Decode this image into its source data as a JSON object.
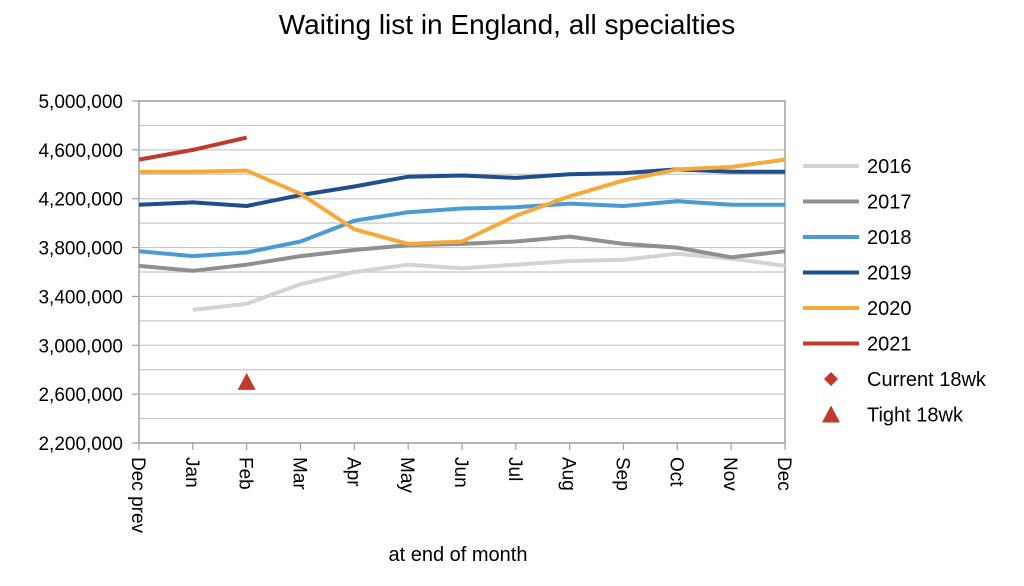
{
  "chart_data": {
    "type": "line",
    "title": "Waiting list in England, all specialties",
    "xlabel": "at end of month",
    "ylabel": "",
    "categories": [
      "Dec prev",
      "Jan",
      "Feb",
      "Mar",
      "Apr",
      "May",
      "Jun",
      "Jul",
      "Aug",
      "Sep",
      "Oct",
      "Nov",
      "Dec"
    ],
    "ylim": [
      2200000,
      5000000
    ],
    "yticks": [
      2200000,
      2600000,
      3000000,
      3400000,
      3800000,
      4200000,
      4600000,
      5000000
    ],
    "ytick_labels": [
      "2,200,000",
      "2,600,000",
      "3,000,000",
      "3,400,000",
      "3,800,000",
      "4,200,000",
      "4,600,000",
      "5,000,000"
    ],
    "grid": true,
    "legend_position": "right",
    "series": [
      {
        "name": "2016",
        "color": "#d3d3d3",
        "marker": "none",
        "values": [
          null,
          3290000,
          3340000,
          3500000,
          3600000,
          3660000,
          3630000,
          3660000,
          3690000,
          3700000,
          3750000,
          3710000,
          3650000
        ]
      },
      {
        "name": "2017",
        "color": "#8f8f8f",
        "marker": "none",
        "values": [
          3650000,
          3610000,
          3660000,
          3730000,
          3780000,
          3820000,
          3830000,
          3850000,
          3890000,
          3830000,
          3800000,
          3720000,
          3770000
        ]
      },
      {
        "name": "2018",
        "color": "#4a9ad4",
        "marker": "none",
        "values": [
          3770000,
          3730000,
          3760000,
          3850000,
          4020000,
          4090000,
          4120000,
          4130000,
          4160000,
          4140000,
          4180000,
          4150000,
          4150000
        ]
      },
      {
        "name": "2019",
        "color": "#1f4e8c",
        "marker": "none",
        "values": [
          4150000,
          4170000,
          4140000,
          4230000,
          4300000,
          4380000,
          4390000,
          4370000,
          4400000,
          4410000,
          4440000,
          4420000,
          4420000
        ]
      },
      {
        "name": "2020",
        "color": "#f5a93b",
        "marker": "none",
        "values": [
          4420000,
          4420000,
          4430000,
          4240000,
          3950000,
          3830000,
          3850000,
          4060000,
          4220000,
          4350000,
          4440000,
          4460000,
          4520000
        ]
      },
      {
        "name": "2021",
        "color": "#c0392b",
        "marker": "none",
        "values": [
          4520000,
          4600000,
          4700000,
          null,
          null,
          null,
          null,
          null,
          null,
          null,
          null,
          null,
          null
        ]
      },
      {
        "name": "Current 18wk",
        "color": "#c0392b",
        "marker": "diamond",
        "values": [
          null,
          null,
          null,
          null,
          null,
          null,
          null,
          null,
          null,
          null,
          null,
          null,
          null
        ]
      },
      {
        "name": "Tight 18wk",
        "color": "#c0392b",
        "marker": "triangle",
        "values": [
          null,
          null,
          2700000,
          null,
          null,
          null,
          null,
          null,
          null,
          null,
          null,
          null,
          null
        ]
      }
    ]
  }
}
